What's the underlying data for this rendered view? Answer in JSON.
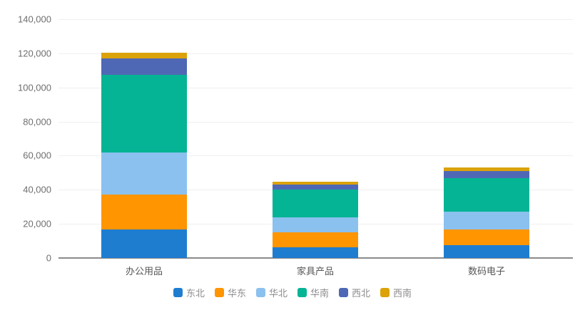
{
  "chart_data": {
    "type": "bar",
    "stacked": true,
    "title": "",
    "xlabel": "",
    "ylabel": "",
    "categories": [
      "办公用品",
      "家具产品",
      "数码电子"
    ],
    "series": [
      {
        "name": "东北",
        "color": "#1f7dd0",
        "values": [
          16800,
          6300,
          7400
        ]
      },
      {
        "name": "华东",
        "color": "#ff9500",
        "values": [
          20500,
          8800,
          9400
        ]
      },
      {
        "name": "华北",
        "color": "#8bc1ef",
        "values": [
          24500,
          8600,
          10200
        ]
      },
      {
        "name": "华南",
        "color": "#05b494",
        "values": [
          45800,
          16400,
          19900
        ]
      },
      {
        "name": "西北",
        "color": "#4f68b5",
        "values": [
          9400,
          2900,
          4000
        ]
      },
      {
        "name": "西南",
        "color": "#dba20a",
        "values": [
          3200,
          1700,
          2000
        ]
      }
    ],
    "yticks": [
      "0",
      "20,000",
      "40,000",
      "60,000",
      "80,000",
      "100,000",
      "120,000",
      "140,000"
    ],
    "ylim": [
      0,
      140000
    ],
    "grid": true,
    "legend_position": "bottom"
  }
}
